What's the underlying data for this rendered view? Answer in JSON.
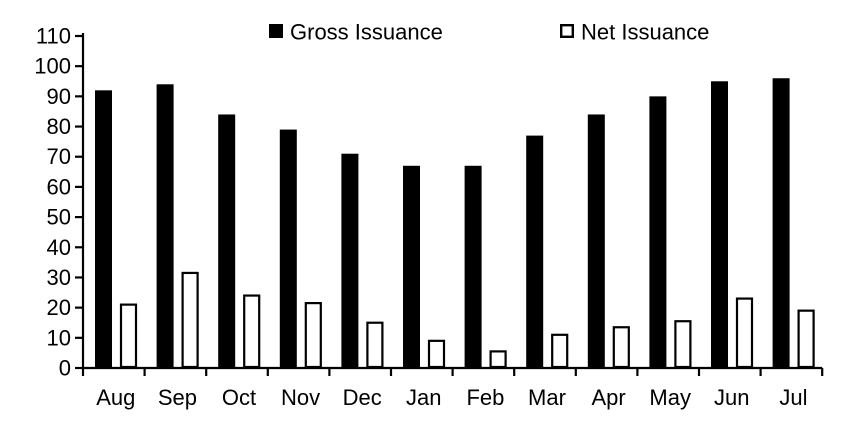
{
  "chart_data": {
    "type": "bar",
    "title": "",
    "categories": [
      "Aug",
      "Sep",
      "Oct",
      "Nov",
      "Dec",
      "Jan",
      "Feb",
      "Mar",
      "Apr",
      "May",
      "Jun",
      "Jul"
    ],
    "series": [
      {
        "name": "Gross Issuance",
        "values": [
          92,
          94,
          84,
          79,
          71,
          67,
          67,
          77,
          84,
          90,
          95,
          96
        ],
        "fill": "#000000",
        "stroke": "#000000",
        "legend_marker": "filled-square"
      },
      {
        "name": "Net Issuance",
        "values": [
          21,
          31.5,
          24,
          21.5,
          15,
          9,
          5.5,
          11,
          13.5,
          15.5,
          23,
          19
        ],
        "fill": "#ffffff",
        "stroke": "#000000",
        "legend_marker": "open-square"
      }
    ],
    "xlabel": "",
    "ylabel": "",
    "ylim": [
      0,
      110
    ],
    "ytick_step": 10,
    "ytick_labels": [
      "0",
      "10",
      "20",
      "30",
      "40",
      "50",
      "60",
      "70",
      "80",
      "90",
      "100",
      "110"
    ],
    "grid": false,
    "legend_position": "top",
    "axis_color": "#000000",
    "background_color": "#ffffff"
  }
}
